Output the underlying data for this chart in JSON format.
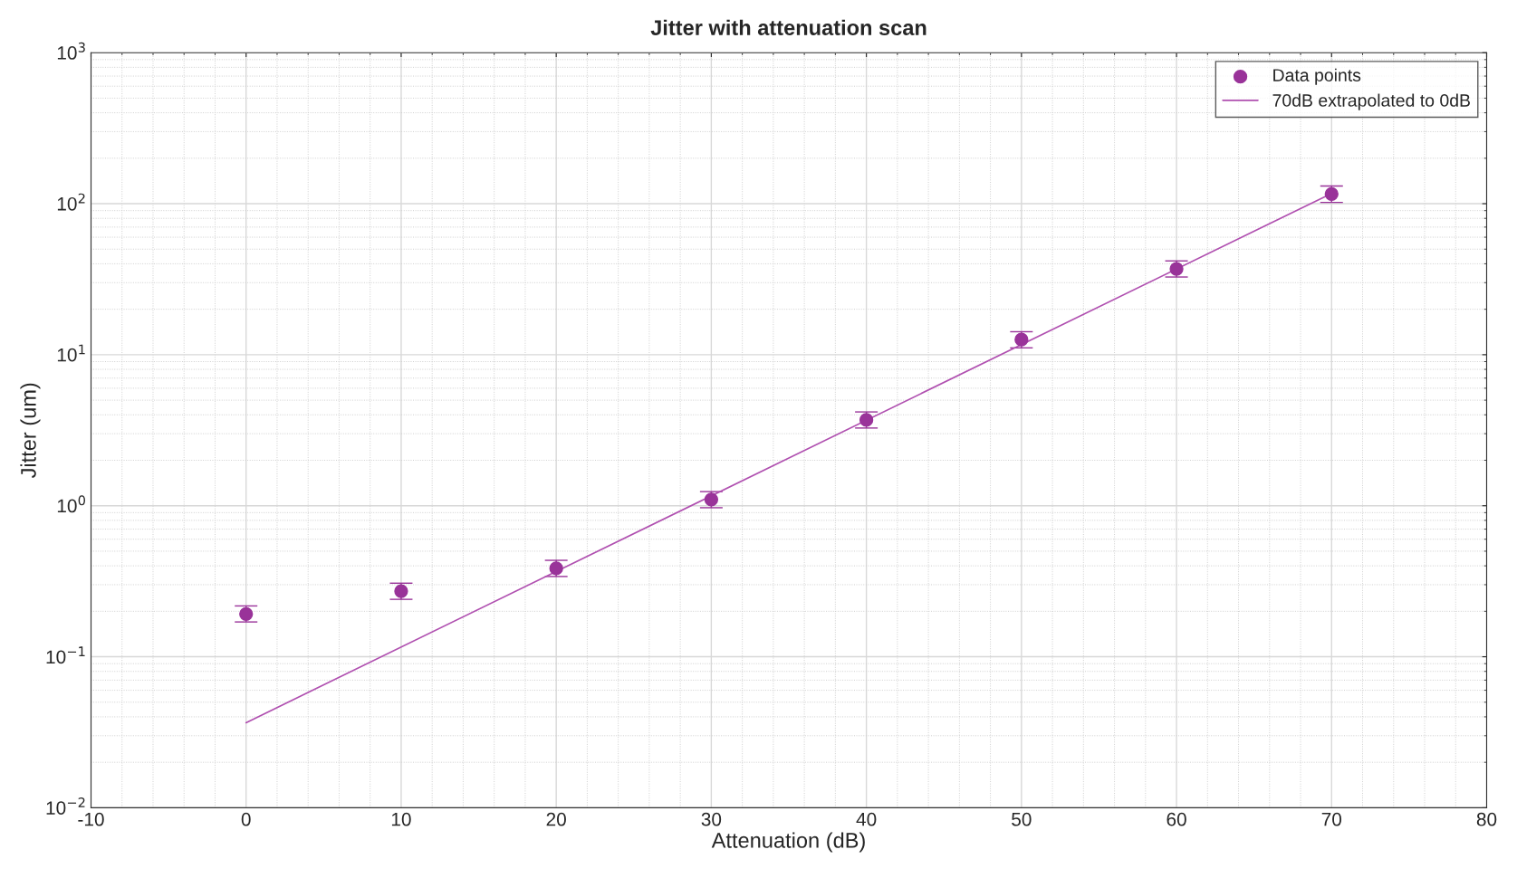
{
  "chart_data": {
    "type": "scatter",
    "title": "Jitter with attenuation scan",
    "xlabel": "Attenuation (dB)",
    "ylabel": "Jitter (um)",
    "log": "y",
    "grid": true,
    "legend": "top right",
    "marker": "circle",
    "xlim": [
      -10,
      80
    ],
    "xticks": [
      -10,
      0,
      10,
      20,
      30,
      40,
      50,
      60,
      70,
      80
    ],
    "ylim": [
      0.01,
      1000
    ],
    "yticks": [
      {
        "value": 0.01,
        "label": "10$^{−2}$"
      },
      {
        "value": 0.1,
        "label": "10$^{−1}$"
      },
      {
        "value": 1,
        "label": "10$^{0}$"
      },
      {
        "value": 10,
        "label": "10$^{1}$"
      },
      {
        "value": 100,
        "label": "10$^{2}$"
      },
      {
        "value": 1000,
        "label": "10$^{3}$"
      }
    ],
    "series": [
      {
        "name": "Data points",
        "color": "#993399",
        "x": [
          0,
          10,
          20,
          30,
          40,
          50,
          60,
          70
        ],
        "values": [
          0.192,
          0.272,
          0.385,
          1.1,
          3.7,
          12.6,
          37,
          116
        ],
        "errors": [
          [
            0.17,
            0.217
          ],
          [
            0.24,
            0.307
          ],
          [
            0.34,
            0.435
          ],
          [
            0.97,
            1.24
          ],
          [
            3.27,
            4.18
          ],
          [
            11.1,
            14.2
          ],
          [
            32.7,
            41.8
          ],
          [
            102,
            131
          ]
        ]
      },
      {
        "name": "70dB extrapolated to 0dB",
        "type": "line",
        "color": "#b050b0",
        "x": [
          0,
          70
        ],
        "values": [
          0.0366,
          117
        ],
        "marker": "none",
        "line_style": "solid"
      }
    ]
  }
}
